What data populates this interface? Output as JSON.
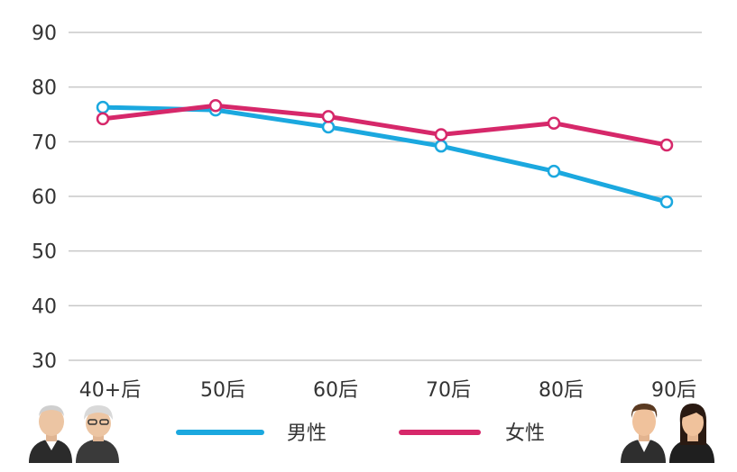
{
  "chart_data": {
    "type": "line",
    "categories": [
      "40+后",
      "50后",
      "60后",
      "70后",
      "80后",
      "90后"
    ],
    "series": [
      {
        "name": "男性",
        "values": [
          76.3,
          75.8,
          72.7,
          69.2,
          64.6,
          59.0
        ],
        "color": "#1ba8df"
      },
      {
        "name": "女性",
        "values": [
          74.2,
          76.6,
          74.6,
          71.3,
          73.4,
          69.4
        ],
        "color": "#d6286a"
      }
    ],
    "ylim": [
      30,
      90
    ],
    "yticks": [
      30,
      40,
      50,
      60,
      70,
      80,
      90
    ],
    "grid": true,
    "legend": "bottom-center",
    "icons": {
      "left": "elderly-couple-icon",
      "right": "young-couple-icon"
    }
  }
}
